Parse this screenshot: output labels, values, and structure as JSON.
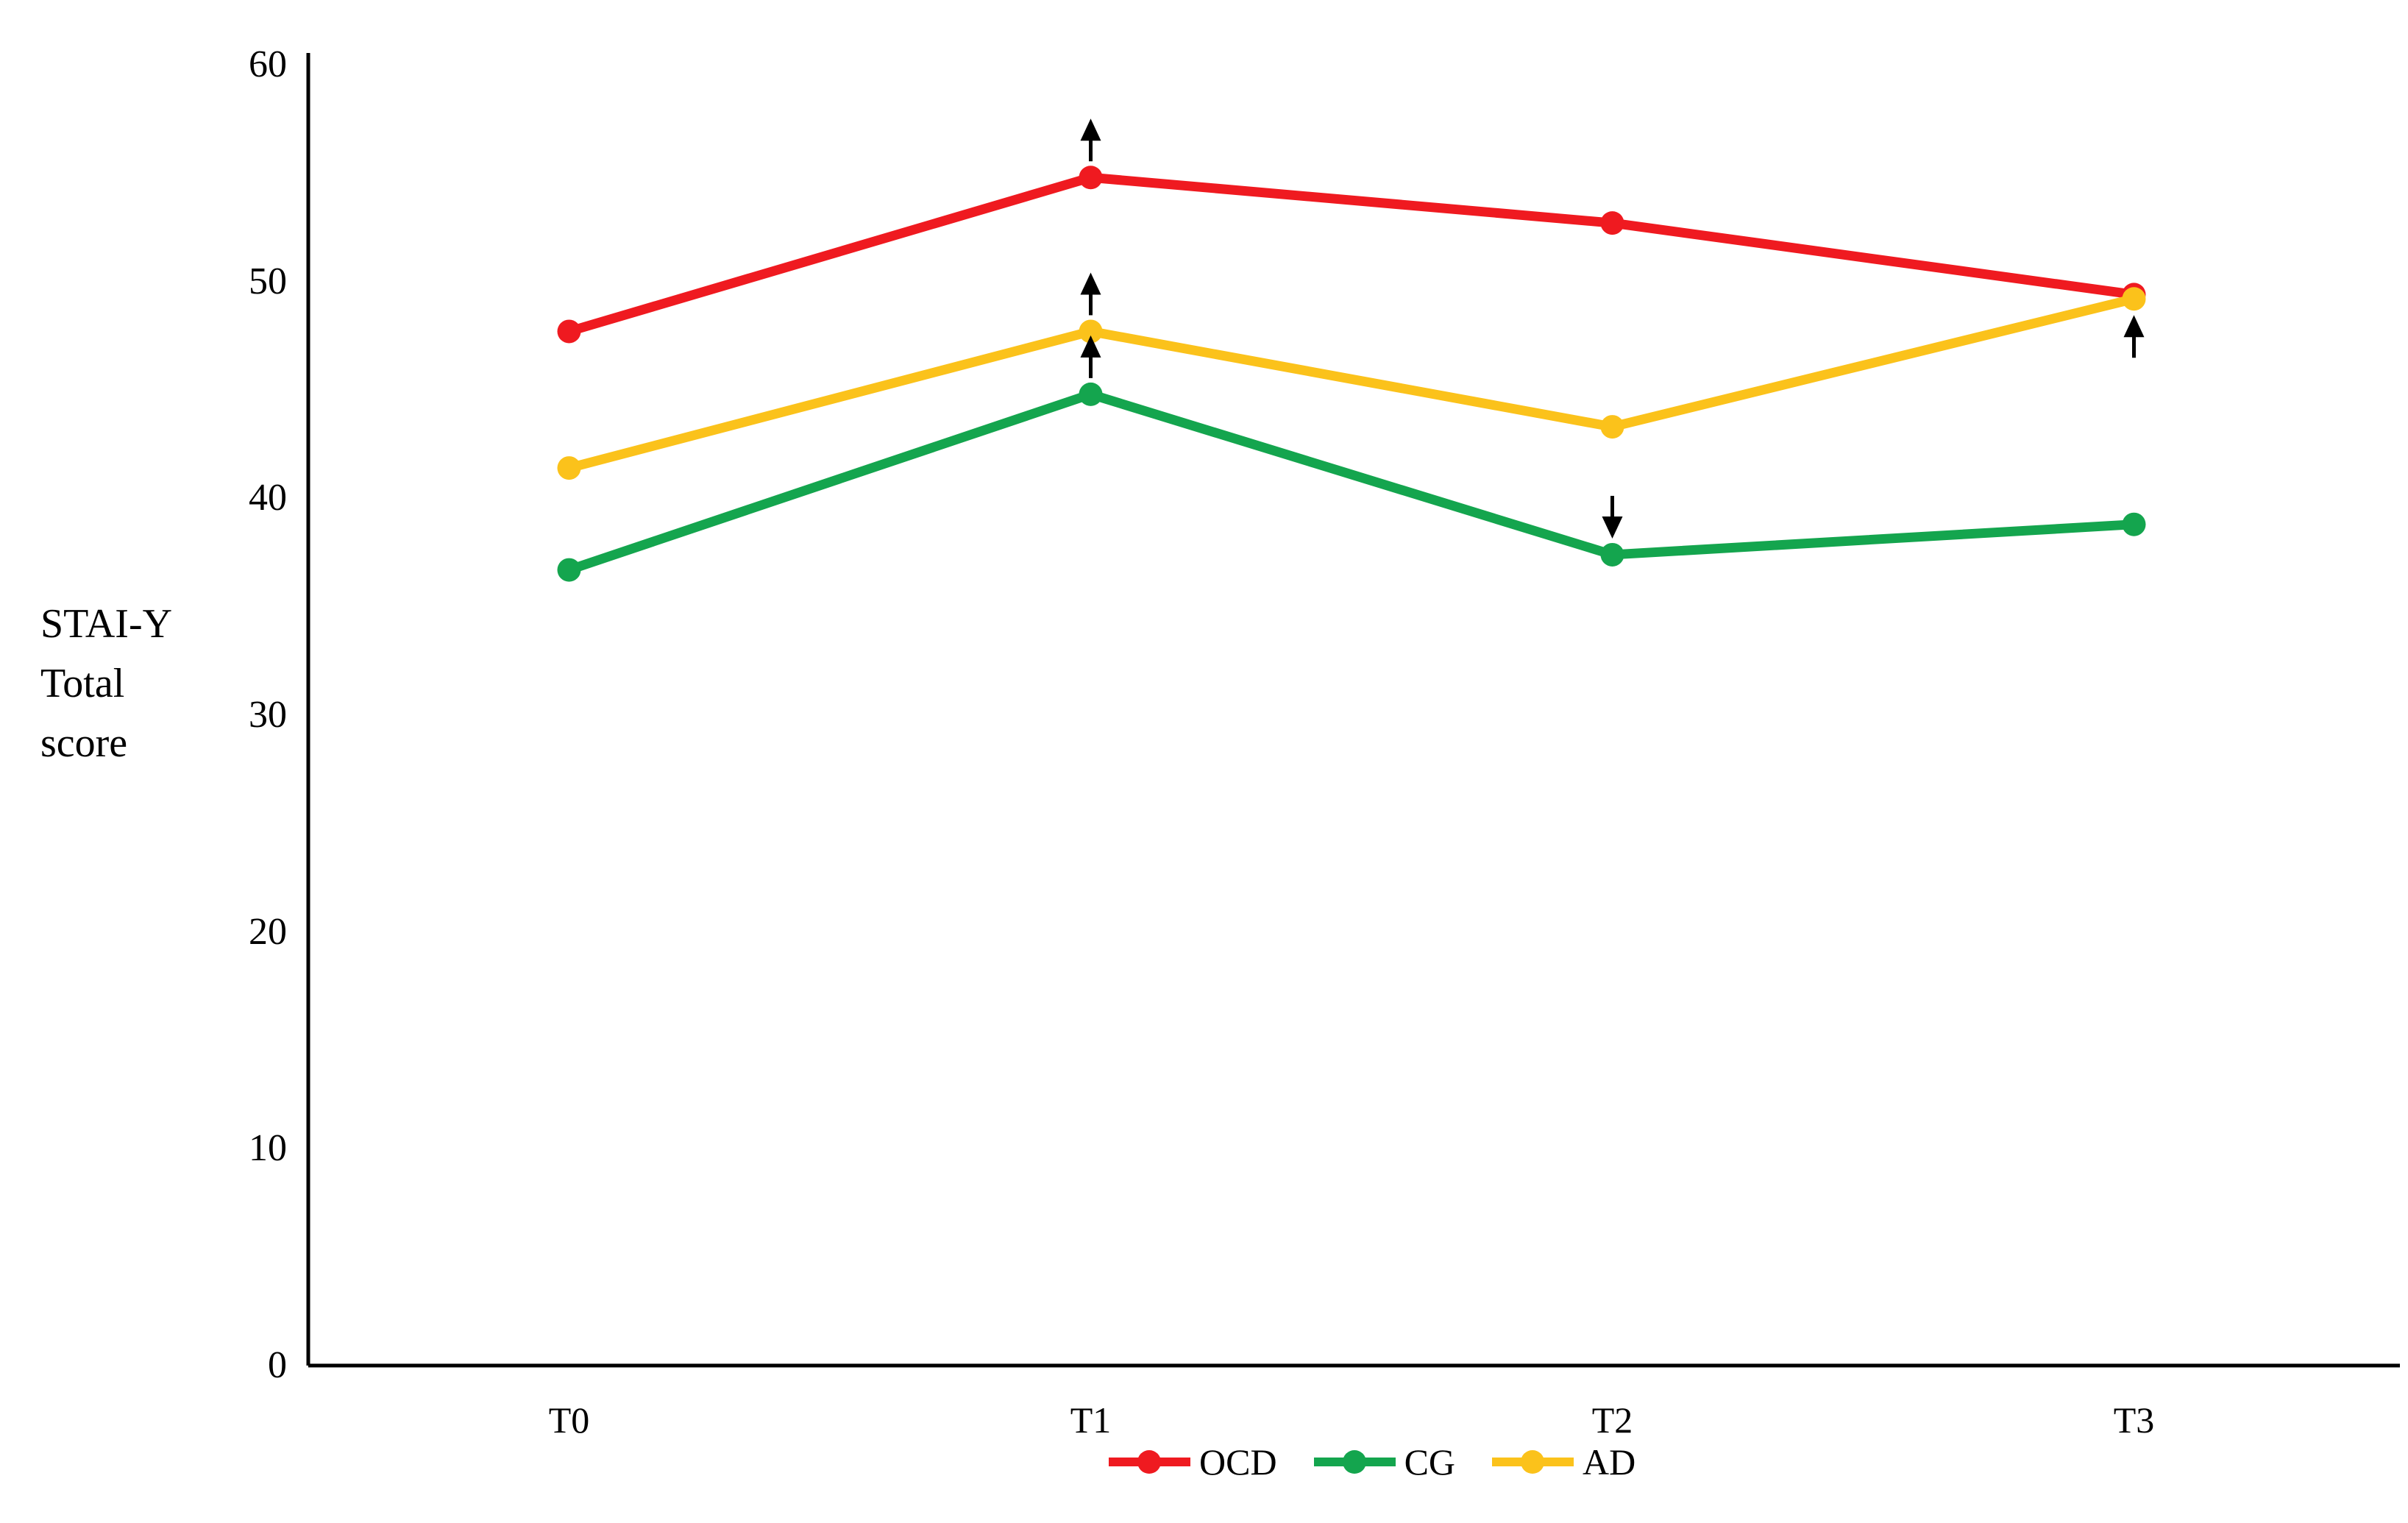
{
  "figure": {
    "background_color": "#ffffff",
    "axis_color": "#000000",
    "text_color": "#000000"
  },
  "chart_data": {
    "type": "line",
    "title": "",
    "ylabel": "STAI-Y Total score",
    "ylabel_lines": [
      "STAI-Y",
      "Total",
      "score"
    ],
    "xlabel": "",
    "categories": [
      "T0",
      "T1",
      "T2",
      "T3"
    ],
    "ylim": [
      0,
      60
    ],
    "yticks": [
      60,
      50,
      40,
      30,
      20,
      10,
      0
    ],
    "grid": false,
    "legend_position": "bottom",
    "marker": "circle",
    "series": [
      {
        "name": "OCD",
        "color": "#EF1A20",
        "values": [
          47.7,
          54.8,
          52.7,
          49.4
        ]
      },
      {
        "name": "CG",
        "color": "#14A54E",
        "values": [
          36.7,
          44.8,
          37.4,
          38.8
        ]
      },
      {
        "name": "AD",
        "color": "#FBC21B",
        "values": [
          41.4,
          47.7,
          43.3,
          49.2
        ]
      }
    ],
    "annotations": [
      {
        "symbol": "arrow-up",
        "series": "OCD",
        "category": "T1",
        "placement": "above"
      },
      {
        "symbol": "arrow-up",
        "series": "AD",
        "category": "T1",
        "placement": "above"
      },
      {
        "symbol": "arrow-up",
        "series": "CG",
        "category": "T1",
        "placement": "above"
      },
      {
        "symbol": "arrow-down",
        "series": "CG",
        "category": "T2",
        "placement": "above"
      },
      {
        "symbol": "arrow-up",
        "series": "AD",
        "category": "T3",
        "placement": "below"
      }
    ],
    "annotation_color": "#000000"
  },
  "legend": {
    "items": [
      {
        "label": "OCD",
        "color": "#EF1A20"
      },
      {
        "label": "CG",
        "color": "#14A54E"
      },
      {
        "label": "AD",
        "color": "#FBC21B"
      }
    ]
  }
}
